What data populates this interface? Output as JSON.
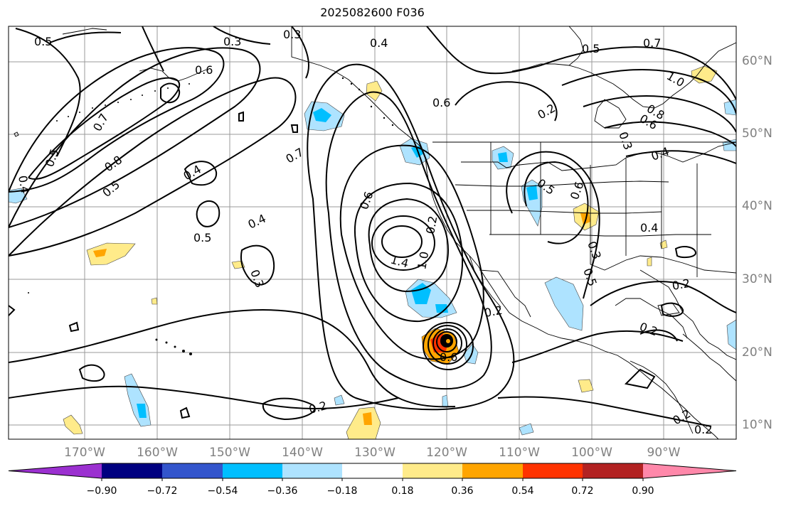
{
  "title": "2025082600 F036",
  "lat_labels": [
    "60°N",
    "50°N",
    "40°N",
    "30°N",
    "20°N",
    "10°N"
  ],
  "lon_labels": [
    "170°W",
    "160°W",
    "150°W",
    "140°W",
    "130°W",
    "120°W",
    "110°W",
    "100°W",
    "90°W"
  ],
  "colorbar": {
    "ticks": [
      "−0.90",
      "−0.72",
      "−0.54",
      "−0.36",
      "−0.18",
      "0.18",
      "0.36",
      "0.54",
      "0.72",
      "0.90"
    ],
    "colors": [
      "#9b30d0",
      "#000080",
      "#3355cc",
      "#00bfff",
      "#aee3ff",
      "#ffffff",
      "#ffeb8a",
      "#ffa500",
      "#ff3300",
      "#b22222",
      "#ff88aa"
    ]
  },
  "contour_labels": [
    "0.5",
    "0.3",
    "0.3",
    "0.4",
    "0.5",
    "0.7",
    "1.0",
    "0.6",
    "0.7",
    "0.5",
    "0.4",
    "0.8",
    "0.5",
    "0.4",
    "0.7",
    "0.6",
    "0.2",
    "0.6",
    "0.8",
    "0.3",
    "0.4",
    "0.4",
    "0.5",
    "0.6",
    "0.5",
    "0.6",
    "0.4",
    "0.5",
    "0.3",
    "1.4",
    "1.0",
    "0.2",
    "0.2",
    "0.3",
    "0.2",
    "0.2",
    "0.6",
    "0.2",
    "0.2",
    "0.2"
  ]
}
